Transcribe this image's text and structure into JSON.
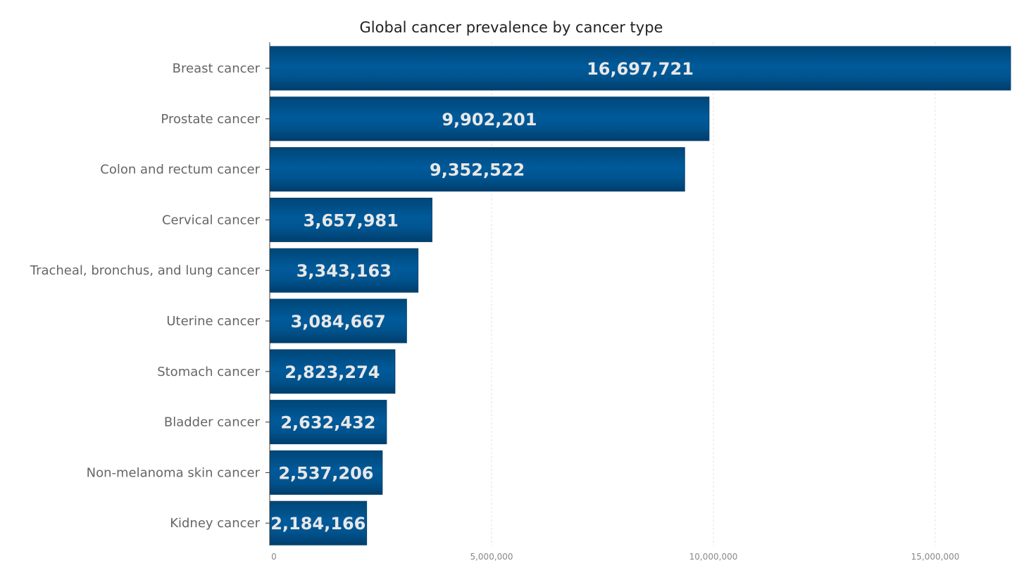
{
  "chart_data": {
    "type": "bar",
    "orientation": "horizontal",
    "title": "Global cancer prevalence by cancer type",
    "categories": [
      "Breast cancer",
      "Prostate cancer",
      "Colon and rectum cancer",
      "Cervical cancer",
      "Tracheal, bronchus, and lung cancer",
      "Uterine cancer",
      "Stomach cancer",
      "Bladder cancer",
      "Non-melanoma skin cancer",
      "Kidney cancer"
    ],
    "values": [
      16697721,
      9902201,
      9352522,
      3657981,
      3343163,
      3084667,
      2823274,
      2632432,
      2537206,
      2184166
    ],
    "value_labels": [
      "16,697,721",
      "9,902,201",
      "9,352,522",
      "3,657,981",
      "3,343,163",
      "3,084,667",
      "2,823,274",
      "2,632,432",
      "2,537,206",
      "2,184,166"
    ],
    "xticks": [
      0,
      5000000,
      10000000,
      15000000
    ],
    "xtick_labels": [
      "0",
      "5,000,000",
      "10,000,000",
      "15,000,000"
    ],
    "xlim": [
      0,
      16697721
    ],
    "grid": "vertical dashed",
    "bar_color": "#00508a",
    "xlabel": "",
    "ylabel": ""
  }
}
